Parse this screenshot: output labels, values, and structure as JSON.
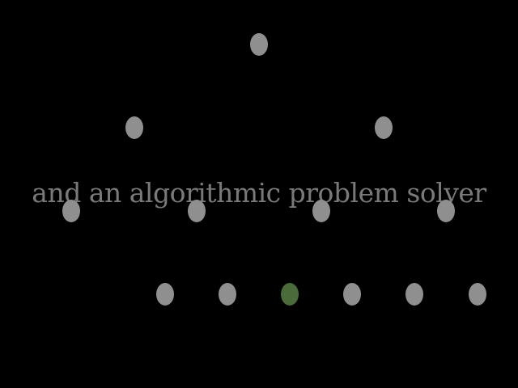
{
  "caption": "and an algorithmic problem solver",
  "colors": {
    "background": "#000000",
    "node": "#8f8f8f",
    "highlight": "#4a6b3a",
    "caption": "#8f8f8f"
  },
  "tree": {
    "levels": [
      {
        "nodes": [
          {
            "highlighted": false
          }
        ]
      },
      {
        "nodes": [
          {
            "highlighted": false
          },
          {
            "highlighted": false
          }
        ]
      },
      {
        "nodes": [
          {
            "highlighted": false
          },
          {
            "highlighted": false
          },
          {
            "highlighted": false
          },
          {
            "highlighted": false
          }
        ]
      },
      {
        "nodes": [
          {
            "highlighted": false
          },
          {
            "highlighted": false
          },
          {
            "highlighted": true
          },
          {
            "highlighted": false
          },
          {
            "highlighted": false
          },
          {
            "highlighted": false
          }
        ]
      }
    ]
  }
}
